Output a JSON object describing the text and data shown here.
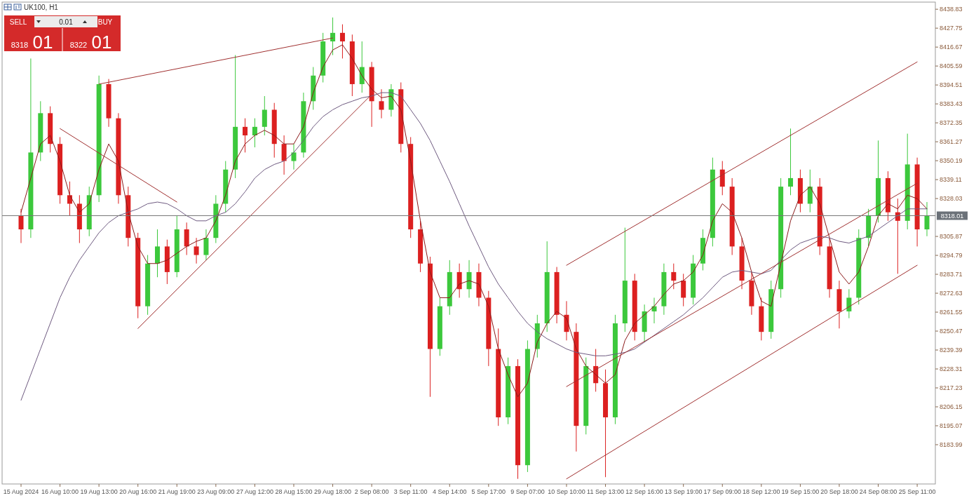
{
  "chart_data": {
    "type": "candlestick",
    "title": "UK100, H1",
    "annotations": [
      "SELL",
      "0.01",
      "BUY",
      "8318",
      "01",
      "8322",
      "01"
    ],
    "categories": [
      "15 Aug 2024",
      null,
      null,
      null,
      "16 Aug 10:00",
      null,
      null,
      null,
      "19 Aug 13:00",
      null,
      null,
      null,
      "20 Aug 16:00",
      null,
      null,
      null,
      "21 Aug 19:00",
      null,
      null,
      null,
      "23 Aug 09:00",
      null,
      null,
      null,
      "27 Aug 12:00",
      null,
      null,
      null,
      "28 Aug 15:00",
      null,
      null,
      null,
      "29 Aug 18:00",
      null,
      null,
      null,
      "2 Sep 08:00",
      null,
      null,
      null,
      "3 Sep 11:00",
      null,
      null,
      null,
      "4 Sep 14:00",
      null,
      null,
      null,
      "5 Sep 17:00",
      null,
      null,
      null,
      "9 Sep 07:00",
      null,
      null,
      null,
      "10 Sep 10:00",
      null,
      null,
      null,
      "11 Sep 13:00",
      null,
      null,
      null,
      "12 Sep 16:00",
      null,
      null,
      null,
      "13 Sep 19:00",
      null,
      null,
      null,
      "17 Sep 09:00",
      null,
      null,
      null,
      "18 Sep 12:00",
      null,
      null,
      null,
      "19 Sep 15:00",
      null,
      null,
      null,
      "20 Sep 18:00",
      null,
      null,
      null,
      "24 Sep 08:00",
      null,
      null,
      null,
      "25 Sep 11:00",
      null
    ],
    "ohlc": [
      [
        8318,
        8322,
        8302,
        8310
      ],
      [
        8310,
        8410,
        8305,
        8355
      ],
      [
        8355,
        8385,
        8350,
        8378
      ],
      [
        8378,
        8382,
        8355,
        8360
      ],
      [
        8360,
        8364,
        8325,
        8330
      ],
      [
        8330,
        8338,
        8318,
        8325
      ],
      [
        8325,
        8330,
        8302,
        8310
      ],
      [
        8310,
        8335,
        8306,
        8330
      ],
      [
        8330,
        8400,
        8326,
        8395
      ],
      [
        8395,
        8398,
        8370,
        8375
      ],
      [
        8375,
        8378,
        8325,
        8330
      ],
      [
        8330,
        8335,
        8300,
        8305
      ],
      [
        8305,
        8308,
        8258,
        8265
      ],
      [
        8265,
        8295,
        8260,
        8290
      ],
      [
        8290,
        8310,
        8282,
        8300
      ],
      [
        8300,
        8304,
        8278,
        8285
      ],
      [
        8285,
        8318,
        8282,
        8310
      ],
      [
        8310,
        8314,
        8295,
        8300
      ],
      [
        8300,
        8305,
        8290,
        8295
      ],
      [
        8295,
        8310,
        8292,
        8305
      ],
      [
        8305,
        8330,
        8302,
        8325
      ],
      [
        8325,
        8350,
        8320,
        8345
      ],
      [
        8345,
        8412,
        8340,
        8370
      ],
      [
        8370,
        8375,
        8355,
        8365
      ],
      [
        8365,
        8375,
        8358,
        8370
      ],
      [
        8370,
        8388,
        8365,
        8380
      ],
      [
        8380,
        8384,
        8352,
        8360
      ],
      [
        8360,
        8365,
        8342,
        8350
      ],
      [
        8350,
        8360,
        8345,
        8355
      ],
      [
        8355,
        8390,
        8352,
        8385
      ],
      [
        8385,
        8405,
        8380,
        8400
      ],
      [
        8400,
        8425,
        8396,
        8420
      ],
      [
        8420,
        8434,
        8412,
        8425
      ],
      [
        8425,
        8430,
        8410,
        8420
      ],
      [
        8420,
        8424,
        8388,
        8395
      ],
      [
        8395,
        8420,
        8390,
        8405
      ],
      [
        8405,
        8408,
        8370,
        8385
      ],
      [
        8385,
        8392,
        8375,
        8380
      ],
      [
        8380,
        8395,
        8376,
        8392
      ],
      [
        8392,
        8396,
        8355,
        8360
      ],
      [
        8360,
        8364,
        8305,
        8310
      ],
      [
        8310,
        8315,
        8285,
        8290
      ],
      [
        8290,
        8294,
        8212,
        8240
      ],
      [
        8240,
        8270,
        8236,
        8265
      ],
      [
        8265,
        8292,
        8260,
        8285
      ],
      [
        8285,
        8290,
        8270,
        8275
      ],
      [
        8275,
        8292,
        8270,
        8285
      ],
      [
        8285,
        8290,
        8265,
        8270
      ],
      [
        8270,
        8274,
        8230,
        8240
      ],
      [
        8240,
        8252,
        8195,
        8200
      ],
      [
        8200,
        8235,
        8196,
        8230
      ],
      [
        8230,
        8234,
        8164,
        8172
      ],
      [
        8172,
        8245,
        8168,
        8240
      ],
      [
        8240,
        8260,
        8235,
        8255
      ],
      [
        8255,
        8303,
        8250,
        8285
      ],
      [
        8285,
        8288,
        8255,
        8260
      ],
      [
        8260,
        8268,
        8245,
        8250
      ],
      [
        8250,
        8255,
        8180,
        8195
      ],
      [
        8195,
        8235,
        8190,
        8230
      ],
      [
        8230,
        8240,
        8215,
        8220
      ],
      [
        8220,
        8228,
        8165,
        8200
      ],
      [
        8200,
        8260,
        8196,
        8255
      ],
      [
        8255,
        8311,
        8250,
        8280
      ],
      [
        8280,
        8284,
        8245,
        8250
      ],
      [
        8250,
        8266,
        8244,
        8262
      ],
      [
        8262,
        8270,
        8255,
        8265
      ],
      [
        8265,
        8290,
        8260,
        8285
      ],
      [
        8285,
        8290,
        8275,
        8280
      ],
      [
        8280,
        8284,
        8265,
        8270
      ],
      [
        8270,
        8295,
        8266,
        8290
      ],
      [
        8290,
        8310,
        8286,
        8305
      ],
      [
        8305,
        8352,
        8300,
        8345
      ],
      [
        8345,
        8350,
        8330,
        8335
      ],
      [
        8335,
        8340,
        8295,
        8300
      ],
      [
        8300,
        8305,
        8275,
        8280
      ],
      [
        8280,
        8285,
        8260,
        8265
      ],
      [
        8265,
        8270,
        8245,
        8250
      ],
      [
        8250,
        8280,
        8246,
        8275
      ],
      [
        8275,
        8340,
        8270,
        8335
      ],
      [
        8335,
        8369,
        8330,
        8340
      ],
      [
        8340,
        8345,
        8320,
        8325
      ],
      [
        8325,
        8345,
        8320,
        8335
      ],
      [
        8335,
        8340,
        8295,
        8300
      ],
      [
        8300,
        8305,
        8270,
        8275
      ],
      [
        8275,
        8280,
        8252,
        8262
      ],
      [
        8262,
        8275,
        8258,
        8270
      ],
      [
        8270,
        8310,
        8266,
        8305
      ],
      [
        8305,
        8322,
        8300,
        8318
      ],
      [
        8318,
        8362,
        8314,
        8340
      ],
      [
        8340,
        8344,
        8315,
        8320
      ],
      [
        8320,
        8328,
        8284,
        8315
      ],
      [
        8315,
        8366,
        8310,
        8348
      ],
      [
        8348,
        8352,
        8300,
        8310
      ],
      [
        8310,
        8326,
        8306,
        8318
      ]
    ],
    "series": [
      {
        "type": "line",
        "color": "#8b1a1a",
        "values": [
          8320,
          8340,
          8360,
          8365,
          8350,
          8330,
          8320,
          8325,
          8345,
          8360,
          8350,
          8320,
          8300,
          8290,
          8290,
          8292,
          8296,
          8300,
          8303,
          8305,
          8315,
          8330,
          8350,
          8360,
          8365,
          8368,
          8365,
          8360,
          8360,
          8370,
          8390,
          8405,
          8415,
          8418,
          8410,
          8400,
          8392,
          8387,
          8388,
          8380,
          8350,
          8315,
          8285,
          8270,
          8270,
          8278,
          8280,
          8278,
          8265,
          8240,
          8225,
          8212,
          8220,
          8244,
          8255,
          8262,
          8258,
          8240,
          8230,
          8225,
          8220,
          8225,
          8245,
          8255,
          8260,
          8265,
          8272,
          8278,
          8280,
          8285,
          8295,
          8315,
          8325,
          8320,
          8305,
          8285,
          8268,
          8265,
          8290,
          8315,
          8330,
          8335,
          8325,
          8305,
          8285,
          8278,
          8285,
          8300,
          8318,
          8325,
          8322,
          8330,
          8328,
          8322
        ]
      },
      {
        "type": "line",
        "color": "#6e5a80",
        "values": [
          8210,
          8225,
          8240,
          8255,
          8270,
          8282,
          8292,
          8300,
          8308,
          8314,
          8318,
          8320,
          8322,
          8325,
          8326,
          8325,
          8322,
          8318,
          8315,
          8315,
          8318,
          8320,
          8325,
          8332,
          8340,
          8345,
          8348,
          8350,
          8355,
          8362,
          8370,
          8376,
          8380,
          8383,
          8385,
          8387,
          8388,
          8390,
          8390,
          8388,
          8380,
          8372,
          8362,
          8350,
          8338,
          8325,
          8312,
          8300,
          8288,
          8278,
          8270,
          8262,
          8255,
          8250,
          8246,
          8243,
          8240,
          8238,
          8237,
          8236,
          8236,
          8237,
          8238,
          8240,
          8244,
          8248,
          8252,
          8256,
          8260,
          8265,
          8270,
          8276,
          8282,
          8285,
          8286,
          8285,
          8284,
          8286,
          8292,
          8298,
          8302,
          8304,
          8306,
          8305,
          8303,
          8302,
          8304,
          8306,
          8310,
          8314,
          8318,
          8322,
          8322,
          8322
        ]
      },
      {
        "type": "line",
        "color": "#a03030",
        "x": [
          "10 Sep 10:00",
          "25 Sep 11:00"
        ],
        "values": [
          8164,
          8289
        ]
      },
      {
        "type": "line",
        "color": "#a03030",
        "x": [
          "10 Sep 10:00",
          "25 Sep 11:00"
        ],
        "values": [
          8218,
          8337
        ]
      },
      {
        "type": "line",
        "color": "#a03030",
        "x": [
          "10 Sep 10:00",
          "25 Sep 11:00"
        ],
        "values": [
          8289,
          8408
        ]
      },
      {
        "type": "line",
        "color": "#a03030",
        "x": [
          "20 Aug 16:00",
          "2 Sep 08:00"
        ],
        "values": [
          8252,
          8389
        ]
      },
      {
        "type": "line",
        "color": "#a03030",
        "x": [
          "19 Aug 13:00",
          "29 Aug 18:00"
        ],
        "values": [
          8395,
          8422
        ]
      },
      {
        "type": "line",
        "color": "#a03030",
        "x": [
          "16 Aug 10:00",
          "21 Aug 19:00"
        ],
        "values": [
          8369,
          8326
        ]
      }
    ],
    "ylim": [
      8161,
      8443
    ],
    "yticks": [
      8183.99,
      8195.07,
      8206.15,
      8217.23,
      8228.31,
      8239.39,
      8250.47,
      8261.55,
      8272.63,
      8283.71,
      8294.79,
      8305.87,
      8328.03,
      8339.11,
      8350.19,
      8361.27,
      8372.35,
      8383.43,
      8394.51,
      8405.59,
      8416.67,
      8427.75,
      8438.83
    ],
    "ref_lines": [
      {
        "axis": "y",
        "value": 8318.01,
        "label": "8318.01",
        "color": "#777777"
      }
    ]
  }
}
